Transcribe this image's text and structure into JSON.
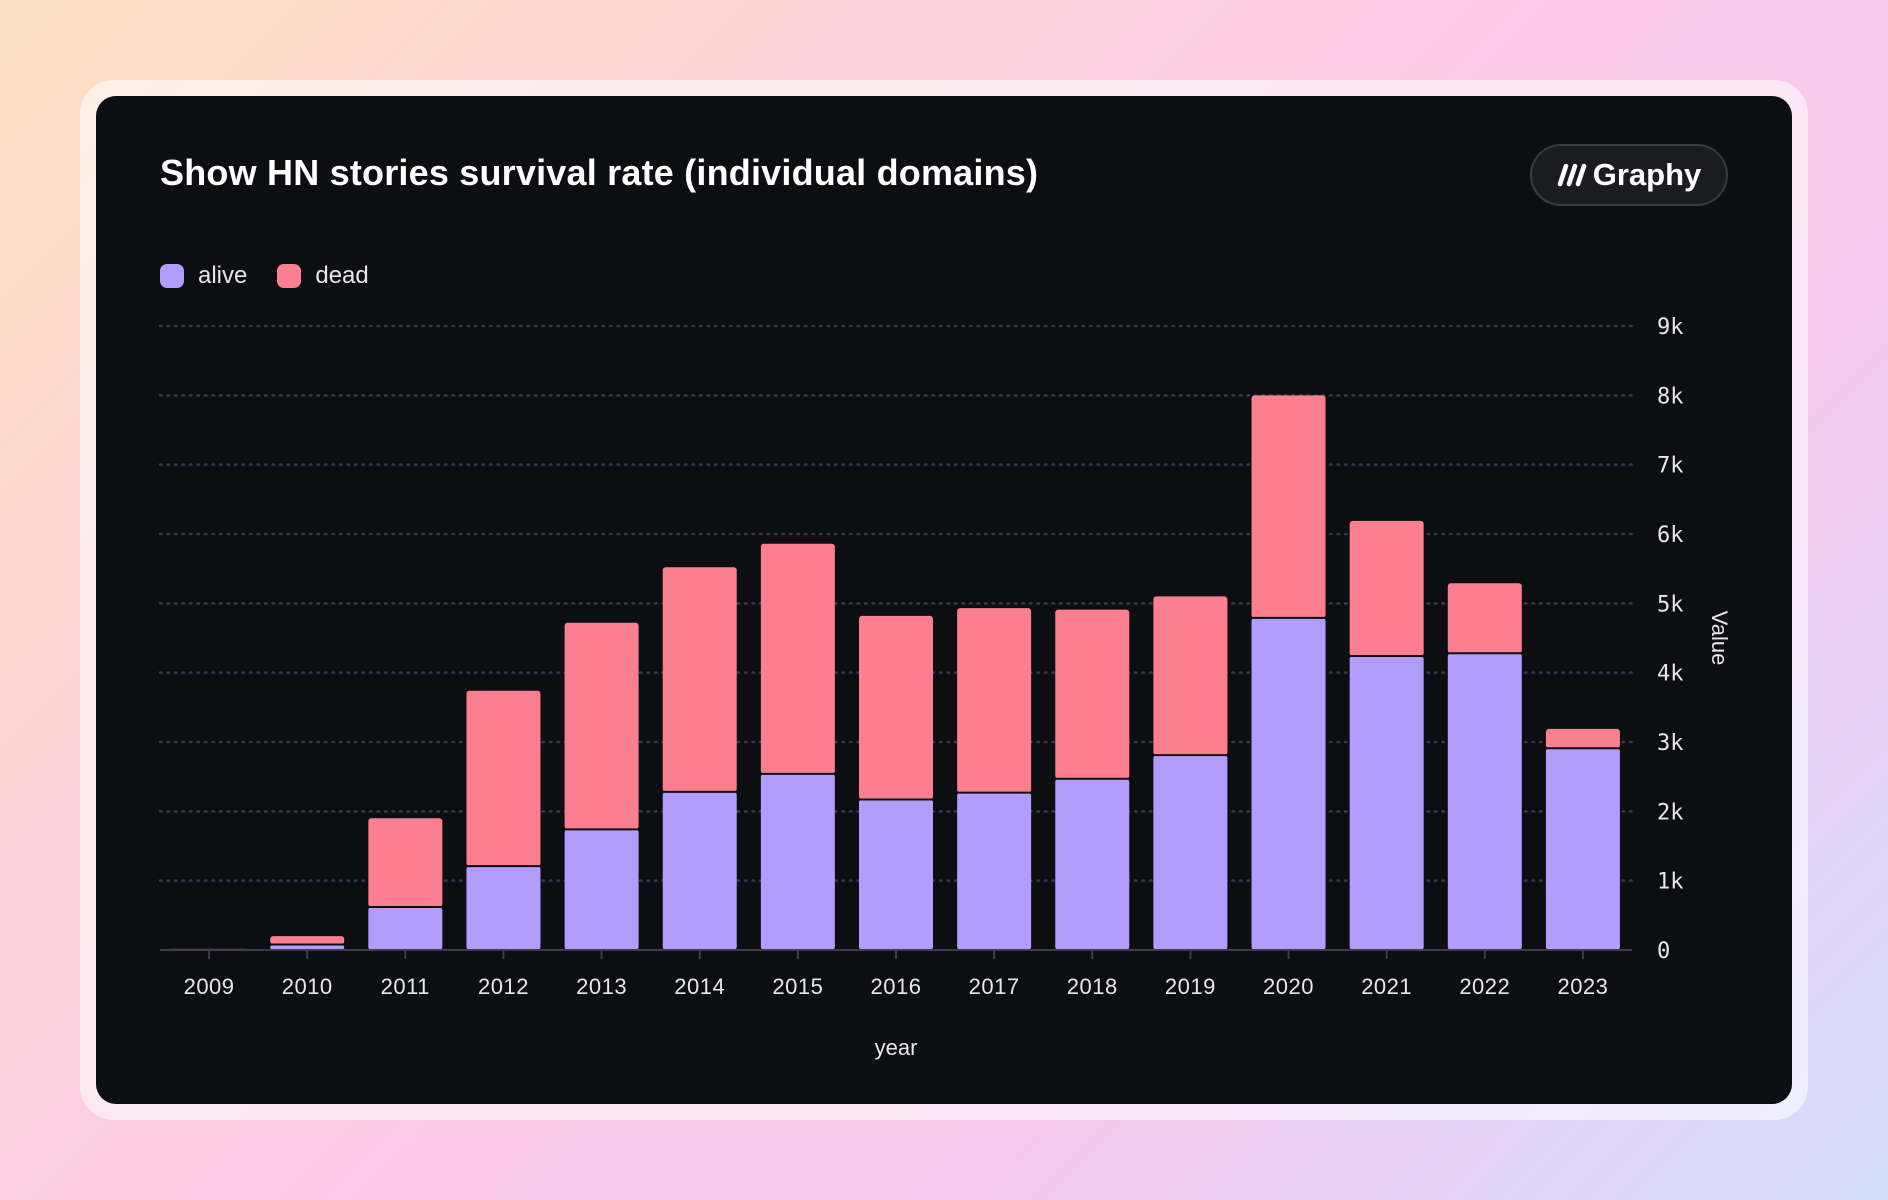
{
  "chart_data": {
    "type": "bar",
    "stacked": true,
    "title": "Show HN stories survival rate (individual domains)",
    "xlabel": "year",
    "ylabel": "Value",
    "categories": [
      "2009",
      "2010",
      "2011",
      "2012",
      "2013",
      "2014",
      "2015",
      "2016",
      "2017",
      "2018",
      "2019",
      "2020",
      "2021",
      "2022",
      "2023"
    ],
    "series": [
      {
        "name": "alive",
        "color": "#b39dfc",
        "values": [
          10,
          80,
          620,
          1210,
          1740,
          2280,
          2540,
          2170,
          2270,
          2470,
          2810,
          4790,
          4240,
          4280,
          2910
        ]
      },
      {
        "name": "dead",
        "color": "#fb7f8f",
        "values": [
          15,
          120,
          1280,
          2530,
          2980,
          3240,
          3320,
          2650,
          2660,
          2440,
          2290,
          3210,
          1950,
          1010,
          280
        ]
      }
    ],
    "ylim": [
      0,
      9000
    ],
    "yticks": [
      0,
      1000,
      2000,
      3000,
      4000,
      5000,
      6000,
      7000,
      8000,
      9000
    ],
    "ytick_labels": [
      "0",
      "1k",
      "2k",
      "3k",
      "4k",
      "5k",
      "6k",
      "7k",
      "8k",
      "9k"
    ],
    "y_axis_side": "right",
    "grid": true,
    "legend_position": "top-left"
  },
  "brand": {
    "name": "Graphy",
    "icon": "graphy-logo-icon"
  }
}
